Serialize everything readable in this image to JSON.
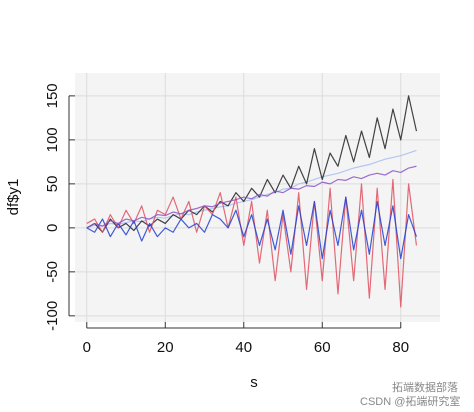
{
  "chart_data": {
    "type": "line",
    "x_label": "s",
    "y_label": "df$y1",
    "x": [
      0,
      2,
      4,
      6,
      8,
      10,
      12,
      14,
      16,
      18,
      20,
      22,
      24,
      26,
      28,
      30,
      32,
      34,
      36,
      38,
      40,
      42,
      44,
      46,
      48,
      50,
      52,
      54,
      56,
      58,
      60,
      62,
      64,
      66,
      68,
      70,
      72,
      74,
      76,
      78,
      80,
      82,
      84
    ],
    "series": [
      {
        "color": "#a7bef0",
        "values": [
          0,
          3,
          2,
          5,
          4,
          6,
          8,
          7,
          10,
          12,
          11,
          14,
          16,
          15,
          18,
          20,
          22,
          24,
          25,
          28,
          30,
          32,
          35,
          38,
          40,
          44,
          45,
          50,
          52,
          55,
          58,
          60,
          62,
          65,
          68,
          70,
          72,
          75,
          78,
          80,
          82,
          85,
          88
        ]
      },
      {
        "color": "#222222",
        "values": [
          0,
          5,
          -5,
          10,
          0,
          5,
          -3,
          8,
          2,
          10,
          5,
          15,
          10,
          20,
          15,
          25,
          18,
          30,
          25,
          40,
          30,
          45,
          35,
          55,
          40,
          60,
          45,
          70,
          50,
          90,
          55,
          85,
          70,
          105,
          75,
          110,
          80,
          125,
          90,
          135,
          100,
          150,
          110
        ]
      },
      {
        "color": "#e05060",
        "values": [
          5,
          10,
          -5,
          15,
          0,
          20,
          5,
          25,
          -5,
          20,
          15,
          35,
          10,
          30,
          -5,
          25,
          15,
          40,
          0,
          35,
          -20,
          30,
          -40,
          20,
          -60,
          15,
          -50,
          40,
          -70,
          30,
          -60,
          45,
          -75,
          35,
          -60,
          50,
          -80,
          45,
          -70,
          55,
          -90,
          50,
          -20
        ]
      },
      {
        "color": "#2040d0",
        "values": [
          0,
          -5,
          10,
          -10,
          5,
          -8,
          8,
          -15,
          5,
          -10,
          0,
          -5,
          10,
          0,
          5,
          -5,
          15,
          10,
          0,
          20,
          -10,
          15,
          -20,
          10,
          -25,
          20,
          -30,
          25,
          -20,
          30,
          -35,
          20,
          -20,
          35,
          -25,
          20,
          -30,
          30,
          -20,
          25,
          -35,
          15,
          -10
        ]
      },
      {
        "color": "#8a55c8",
        "values": [
          0,
          5,
          2,
          8,
          5,
          10,
          8,
          12,
          10,
          15,
          14,
          18,
          16,
          20,
          22,
          25,
          24,
          28,
          30,
          32,
          35,
          33,
          38,
          36,
          42,
          40,
          45,
          44,
          48,
          47,
          52,
          50,
          55,
          54,
          58,
          56,
          60,
          62,
          60,
          65,
          63,
          68,
          70
        ]
      }
    ],
    "xlim": [
      -3,
      90
    ],
    "ylim": [
      -107,
      176
    ],
    "xticks": [
      0,
      20,
      40,
      60,
      80
    ],
    "yticks": [
      -100,
      -50,
      0,
      50,
      100,
      150
    ],
    "grid": true
  },
  "watermark": {
    "line1": "拓端数据部落",
    "line2": "CSDN @拓端研究室"
  }
}
